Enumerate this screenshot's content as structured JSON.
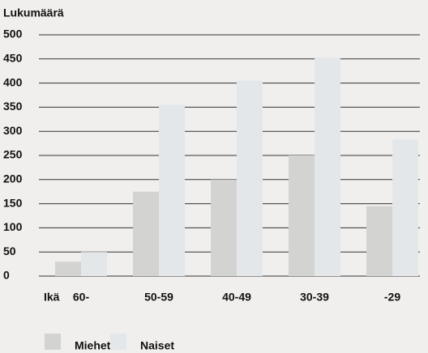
{
  "chart_data": {
    "type": "bar",
    "y_label": "Lukumäärä",
    "x_label": "Ikä",
    "categories": [
      "60-",
      "50-59",
      "40-49",
      "30-39",
      "-29"
    ],
    "series": [
      {
        "name": "Miehet",
        "color": "#d3d4d1",
        "values": [
          30,
          175,
          200,
          250,
          145
        ]
      },
      {
        "name": "Naiset",
        "color": "#e3e7ea",
        "values": [
          50,
          355,
          405,
          453,
          283
        ]
      }
    ],
    "ylim": [
      0,
      500
    ],
    "yticks": [
      0,
      50,
      100,
      150,
      200,
      250,
      300,
      350,
      400,
      450,
      500
    ],
    "grid": true,
    "legend": "bottom"
  }
}
